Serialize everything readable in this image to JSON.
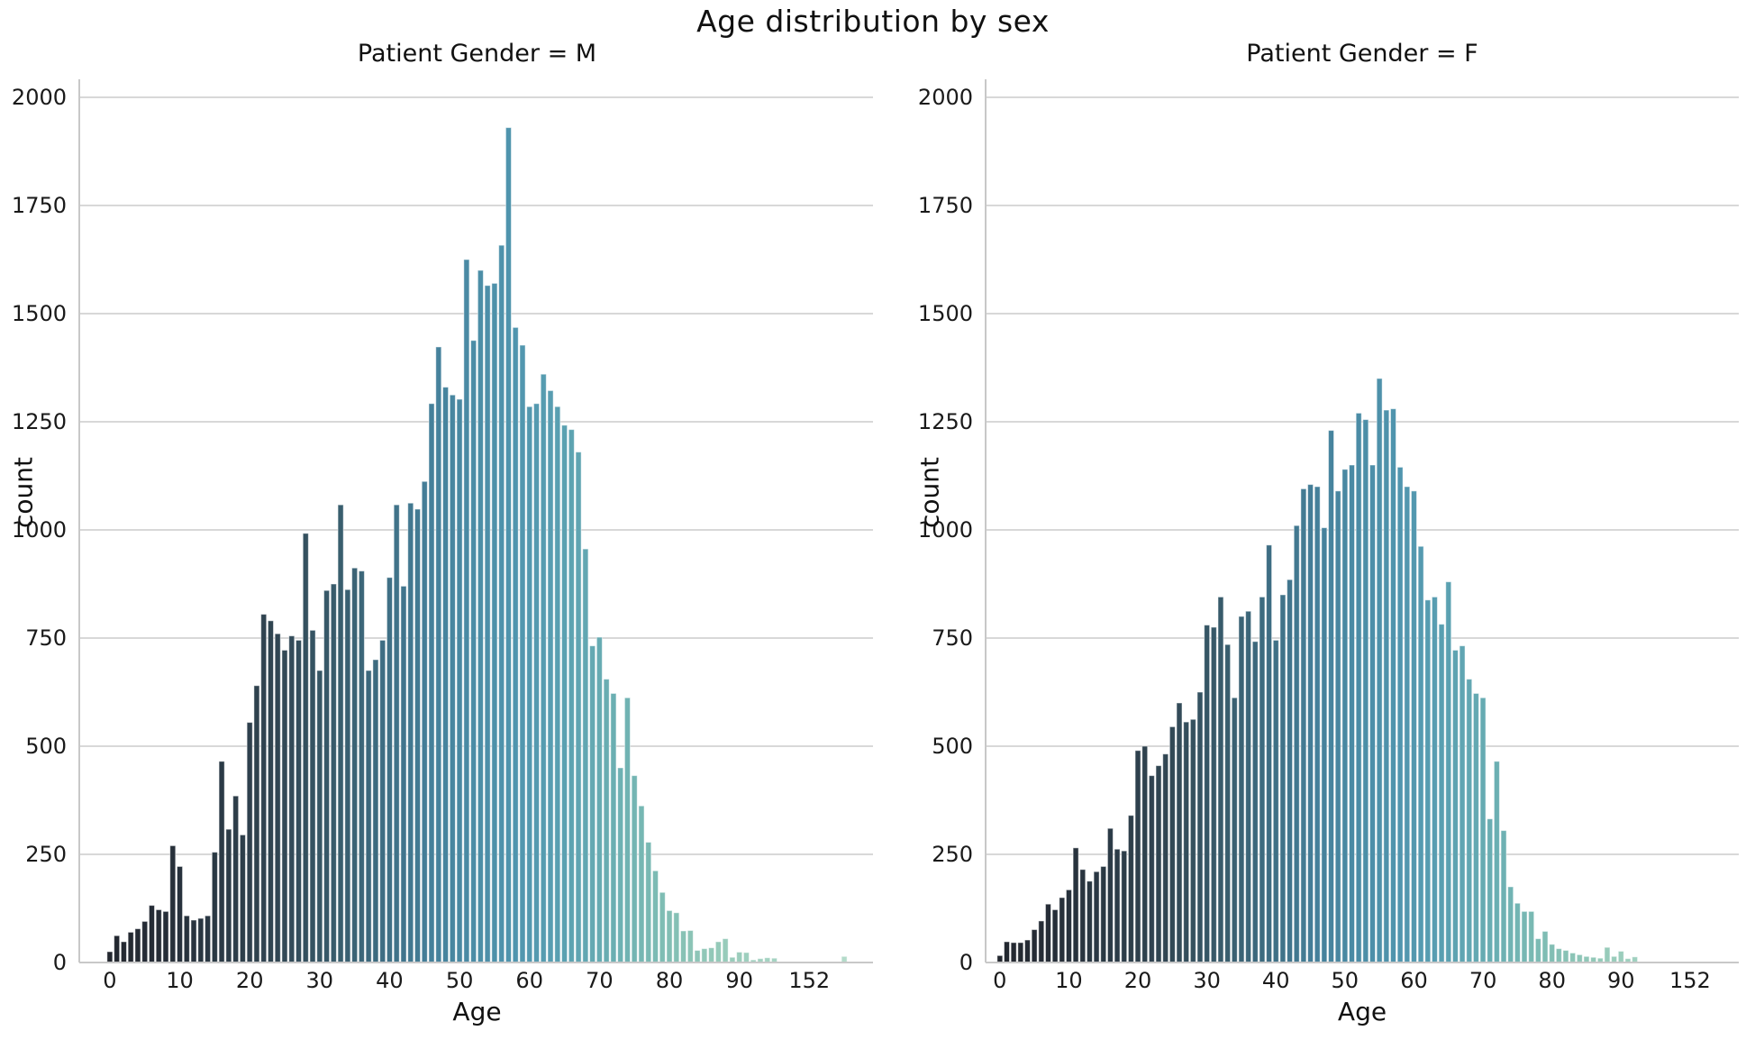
{
  "title": "Age distribution by sex",
  "colors": {
    "background": "#ffffff",
    "grid": "#d8d8d8",
    "spine": "#c8c8c8",
    "tick_text": "#1a1a1a",
    "bar_edge": "rgba(255,255,255,0.5)"
  },
  "palette_stops": [
    {
      "index": 0,
      "color": "#23272f"
    },
    {
      "index": 8,
      "color": "#262e38"
    },
    {
      "index": 16,
      "color": "#2b3a46"
    },
    {
      "index": 24,
      "color": "#314653"
    },
    {
      "index": 32,
      "color": "#385b6b"
    },
    {
      "index": 40,
      "color": "#3f7086"
    },
    {
      "index": 46,
      "color": "#45809a"
    },
    {
      "index": 52,
      "color": "#4b8ca6"
    },
    {
      "index": 58,
      "color": "#5095ae"
    },
    {
      "index": 64,
      "color": "#599fb1"
    },
    {
      "index": 70,
      "color": "#66abb2"
    },
    {
      "index": 76,
      "color": "#76b7b3"
    },
    {
      "index": 82,
      "color": "#88c2b5"
    },
    {
      "index": 88,
      "color": "#97cbba"
    },
    {
      "index": 94,
      "color": "#a3d2c1"
    },
    {
      "index": 105,
      "color": "#b4dbca"
    }
  ],
  "chart_data": [
    {
      "type": "bar",
      "title": "Patient Gender = M",
      "xlabel": "Age",
      "ylabel": "count",
      "ylim": [
        0,
        2000
      ],
      "yticks": [
        0,
        250,
        500,
        750,
        1000,
        1250,
        1500,
        1750,
        2000
      ],
      "grid": true,
      "legend": "none",
      "x_note": "categorical age bins 0-105; ticks every 10 bins, last labeled tick is 152",
      "xtick_positions": [
        0,
        10,
        20,
        30,
        40,
        50,
        60,
        70,
        80,
        90,
        100
      ],
      "xtick_labels": [
        "0",
        "10",
        "20",
        "30",
        "40",
        "50",
        "60",
        "70",
        "80",
        "90",
        "152"
      ],
      "values": [
        25,
        62,
        48,
        70,
        78,
        95,
        132,
        122,
        118,
        270,
        222,
        108,
        98,
        102,
        108,
        255,
        465,
        308,
        385,
        295,
        555,
        640,
        805,
        790,
        760,
        722,
        755,
        745,
        992,
        768,
        675,
        860,
        875,
        1058,
        862,
        912,
        905,
        675,
        700,
        745,
        890,
        1058,
        870,
        1062,
        1048,
        1112,
        1292,
        1423,
        1330,
        1312,
        1302,
        1625,
        1438,
        1600,
        1565,
        1570,
        1658,
        1930,
        1468,
        1427,
        1285,
        1292,
        1360,
        1322,
        1285,
        1242,
        1232,
        1180,
        956,
        732,
        752,
        655,
        622,
        450,
        612,
        432,
        362,
        278,
        212,
        162,
        120,
        115,
        73,
        74,
        28,
        32,
        34,
        48,
        55,
        12,
        24,
        23,
        6,
        9,
        11,
        10,
        0,
        0,
        0,
        0,
        0,
        0,
        0,
        0,
        0,
        14
      ]
    },
    {
      "type": "bar",
      "title": "Patient Gender = F",
      "xlabel": "Age",
      "ylabel": "count",
      "ylim": [
        0,
        2000
      ],
      "yticks": [
        0,
        250,
        500,
        750,
        1000,
        1250,
        1500,
        1750,
        2000
      ],
      "grid": true,
      "legend": "none",
      "x_note": "categorical age bins 0-105; ticks every 10 bins, last labeled tick is 152",
      "xtick_positions": [
        0,
        10,
        20,
        30,
        40,
        50,
        60,
        70,
        80,
        90,
        100
      ],
      "xtick_labels": [
        "0",
        "10",
        "20",
        "30",
        "40",
        "50",
        "60",
        "70",
        "80",
        "90",
        "152"
      ],
      "values": [
        16,
        48,
        46,
        46,
        52,
        76,
        96,
        135,
        122,
        150,
        168,
        265,
        215,
        188,
        210,
        222,
        310,
        262,
        258,
        340,
        490,
        500,
        432,
        455,
        482,
        545,
        600,
        556,
        562,
        625,
        780,
        775,
        845,
        735,
        612,
        800,
        812,
        742,
        845,
        965,
        745,
        850,
        885,
        1010,
        1095,
        1105,
        1100,
        1005,
        1230,
        1090,
        1140,
        1150,
        1270,
        1255,
        1150,
        1350,
        1277,
        1280,
        1145,
        1100,
        1090,
        962,
        838,
        845,
        782,
        880,
        722,
        732,
        655,
        622,
        612,
        332,
        465,
        305,
        175,
        137,
        118,
        118,
        55,
        72,
        42,
        32,
        28,
        22,
        18,
        14,
        12,
        10,
        35,
        14,
        26,
        9,
        13,
        0,
        0,
        0,
        0,
        0,
        0,
        0,
        0,
        0,
        0,
        0,
        0,
        0
      ]
    }
  ]
}
